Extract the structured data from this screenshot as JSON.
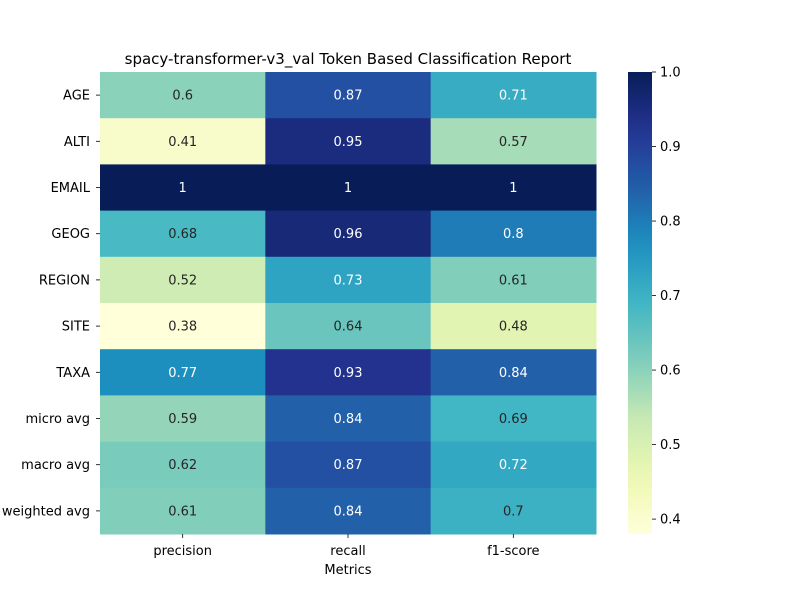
{
  "chart_data": {
    "type": "heatmap",
    "title": "spacy-transformer-v3_val Token Based Classification Report",
    "xlabel": "Metrics",
    "ylabel": "",
    "columns": [
      "precision",
      "recall",
      "f1-score"
    ],
    "rows": [
      "AGE",
      "ALTI",
      "EMAIL",
      "GEOG",
      "REGION",
      "SITE",
      "TAXA",
      "micro avg",
      "macro avg",
      "weighted avg"
    ],
    "values": [
      [
        0.6,
        0.87,
        0.71
      ],
      [
        0.41,
        0.95,
        0.57
      ],
      [
        1,
        1,
        1
      ],
      [
        0.68,
        0.96,
        0.8
      ],
      [
        0.52,
        0.73,
        0.61
      ],
      [
        0.38,
        0.64,
        0.48
      ],
      [
        0.77,
        0.93,
        0.84
      ],
      [
        0.59,
        0.84,
        0.69
      ],
      [
        0.62,
        0.87,
        0.72
      ],
      [
        0.61,
        0.84,
        0.7
      ]
    ],
    "colormap": "YlGnBu",
    "colorbar": {
      "vmin": 0.38,
      "vmax": 1.0,
      "ticks": [
        0.4,
        0.5,
        0.6,
        0.7,
        0.8,
        0.9,
        1.0
      ],
      "tick_labels": [
        "0.4",
        "0.5",
        "0.6",
        "0.7",
        "0.8",
        "0.9",
        "1.0"
      ]
    },
    "annotations": true,
    "grid": false,
    "legend": "colorbar-right"
  }
}
